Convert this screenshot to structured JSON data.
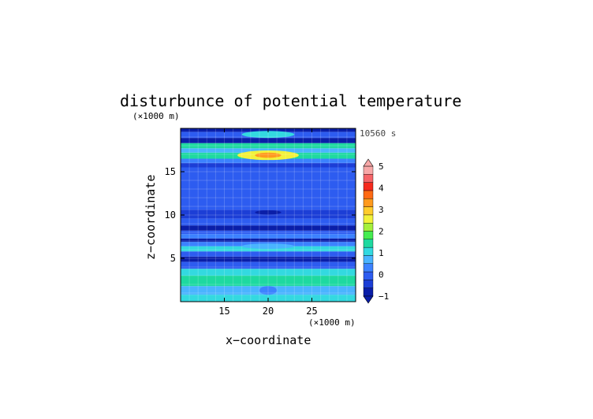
{
  "chart_data": {
    "type": "heatmap",
    "title": "disturbunce of potential temperature",
    "time_label": "10560 s",
    "xlabel": "x−coordinate",
    "ylabel": "z−coordinate",
    "x_unit": "(×1000 m)",
    "y_unit": "(×1000 m)",
    "xlim": [
      10,
      30
    ],
    "ylim": [
      0,
      20
    ],
    "x_ticks": [
      15,
      20,
      25
    ],
    "y_ticks": [
      5,
      10,
      15
    ],
    "grid": true,
    "colorbar": {
      "min": -1,
      "max": 5,
      "step": 0.5,
      "tick_labels": [
        "5",
        "4",
        "3",
        "2",
        "1",
        "0",
        "−1"
      ],
      "colors": [
        "#0a1ea8",
        "#1c3ed6",
        "#2d5cf0",
        "#3c82ff",
        "#4ab4ff",
        "#33d9e0",
        "#1ed9a0",
        "#45ec50",
        "#a5f03c",
        "#f2f23a",
        "#ffcc2c",
        "#ff9a1e",
        "#ff6a14",
        "#f52a1e",
        "#f56468",
        "#f7a8a8"
      ]
    },
    "layers": [
      {
        "z_bottom": 0.0,
        "z_top": 0.8,
        "value": 1.7
      },
      {
        "z_bottom": 0.8,
        "z_top": 1.8,
        "value": 1.1
      },
      {
        "z_bottom": 1.8,
        "z_top": 3.0,
        "value": 2.1
      },
      {
        "z_bottom": 3.0,
        "z_top": 3.8,
        "value": 1.6
      },
      {
        "z_bottom": 3.8,
        "z_top": 4.6,
        "value": 0.1
      },
      {
        "z_bottom": 4.6,
        "z_top": 5.2,
        "value": -0.7
      },
      {
        "z_bottom": 5.2,
        "z_top": 5.8,
        "value": 0.2
      },
      {
        "z_bottom": 5.8,
        "z_top": 6.4,
        "value": 1.7
      },
      {
        "z_bottom": 6.4,
        "z_top": 6.9,
        "value": 0.6
      },
      {
        "z_bottom": 6.9,
        "z_top": 7.3,
        "value": -0.6
      },
      {
        "z_bottom": 7.3,
        "z_top": 7.8,
        "value": 0.9
      },
      {
        "z_bottom": 7.8,
        "z_top": 8.2,
        "value": 0.0
      },
      {
        "z_bottom": 8.2,
        "z_top": 8.8,
        "value": -0.9
      },
      {
        "z_bottom": 8.8,
        "z_top": 9.6,
        "value": 0.2
      },
      {
        "z_bottom": 9.6,
        "z_top": 10.6,
        "value": -0.2
      },
      {
        "z_bottom": 10.6,
        "z_top": 12.5,
        "value": 0.1
      },
      {
        "z_bottom": 12.5,
        "z_top": 14.5,
        "value": 0.2
      },
      {
        "z_bottom": 14.5,
        "z_top": 15.5,
        "value": 0.3
      },
      {
        "z_bottom": 15.5,
        "z_top": 16.0,
        "value": -0.5
      },
      {
        "z_bottom": 16.0,
        "z_top": 16.5,
        "value": 0.7
      },
      {
        "z_bottom": 16.5,
        "z_top": 17.2,
        "value": 2.4
      },
      {
        "z_bottom": 17.2,
        "z_top": 17.7,
        "value": 1.0
      },
      {
        "z_bottom": 17.7,
        "z_top": 18.3,
        "value": 2.0
      },
      {
        "z_bottom": 18.3,
        "z_top": 18.9,
        "value": -0.6
      },
      {
        "z_bottom": 18.9,
        "z_top": 19.6,
        "value": 0.4
      },
      {
        "z_bottom": 19.6,
        "z_top": 20.0,
        "value": -0.9
      }
    ],
    "features": [
      {
        "x": 20.0,
        "z": 16.9,
        "rx": 3.5,
        "rz": 0.55,
        "value": 3.5
      },
      {
        "x": 20.0,
        "z": 16.9,
        "rx": 1.5,
        "rz": 0.3,
        "value": 4.8
      },
      {
        "x": 20.0,
        "z": 19.3,
        "rx": 3.0,
        "rz": 0.4,
        "value": 1.8
      },
      {
        "x": 20.0,
        "z": 10.3,
        "rx": 1.5,
        "rz": 0.25,
        "value": -0.9
      },
      {
        "x": 20.0,
        "z": 6.4,
        "rx": 3.0,
        "rz": 0.3,
        "value": 1.2
      },
      {
        "x": 20.0,
        "z": 1.3,
        "rx": 1.0,
        "rz": 0.5,
        "value": 0.6
      }
    ]
  }
}
